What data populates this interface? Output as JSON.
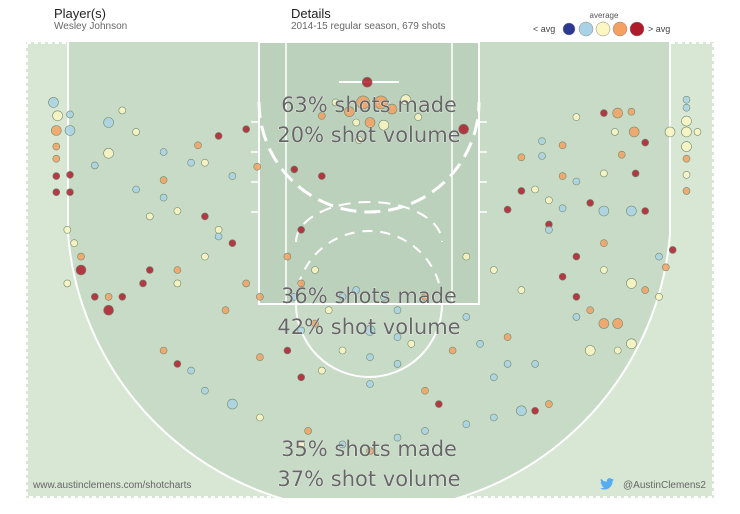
{
  "header": {
    "player_label": "Player(s)",
    "player_name": "Wesley Johnson",
    "details_label": "Details",
    "details_text": "2014-15 regular season, 679 shots"
  },
  "legend": {
    "title": "average",
    "low_label": "< avg",
    "high_label": "> avg",
    "colors": [
      "#2b3a8f",
      "#a9d2e6",
      "#fbf6c2",
      "#f4a060",
      "#b01b2c"
    ]
  },
  "footer": {
    "left_text": "www.austinclemens.com/shotcharts",
    "right_text": "@AustinClemens2",
    "twitter_color": "#55acee"
  },
  "colors": {
    "court_bg": "#d8e6d4",
    "paint_bg": "#bcd1bc",
    "arc_bg": "#c8dbc6",
    "line": "#ffffff"
  },
  "chart_data": {
    "type": "scatter",
    "title": "",
    "zones": [
      {
        "name": "restricted",
        "made_label": "63% shots made",
        "volume_label": "20% shot volume",
        "made_pct": 63,
        "volume_pct": 20
      },
      {
        "name": "mid-range",
        "made_label": "36% shots made",
        "volume_label": "42% shot volume",
        "made_pct": 36,
        "volume_pct": 42
      },
      {
        "name": "three-point",
        "made_label": "35% shots made",
        "volume_label": "37% shot volume",
        "made_pct": 35,
        "volume_pct": 37
      }
    ],
    "color_scale": [
      "< avg",
      "average",
      "> avg"
    ],
    "x_range": [
      -25,
      25
    ],
    "y_range": [
      -4,
      30
    ],
    "points": [
      {
        "x": -0.5,
        "y": 0.5,
        "size": 3,
        "level": 3
      },
      {
        "x": 0.8,
        "y": 0.5,
        "size": 3,
        "level": 3
      },
      {
        "x": -1.5,
        "y": 1.2,
        "size": 2,
        "level": 3
      },
      {
        "x": 1.6,
        "y": 1.0,
        "size": 2,
        "level": 3
      },
      {
        "x": -2.5,
        "y": 0.5,
        "size": 1,
        "level": 2
      },
      {
        "x": 2.6,
        "y": 0.3,
        "size": 2,
        "level": 2
      },
      {
        "x": 0.0,
        "y": 2.0,
        "size": 2,
        "level": 3
      },
      {
        "x": -1.0,
        "y": 2.0,
        "size": 1,
        "level": 2
      },
      {
        "x": 1.0,
        "y": 2.2,
        "size": 2,
        "level": 2
      },
      {
        "x": -3.5,
        "y": 1.5,
        "size": 1,
        "level": 3
      },
      {
        "x": 3.5,
        "y": 1.6,
        "size": 1,
        "level": 2
      },
      {
        "x": -0.2,
        "y": -1.0,
        "size": 2,
        "level": 4
      },
      {
        "x": 6.8,
        "y": 2.5,
        "size": 2,
        "level": 4
      },
      {
        "x": -5.5,
        "y": 5.5,
        "size": 1,
        "level": 4
      },
      {
        "x": -3.5,
        "y": 6.0,
        "size": 1,
        "level": 4
      },
      {
        "x": -0.8,
        "y": 3.3,
        "size": 1,
        "level": 2
      },
      {
        "x": -23.0,
        "y": 0.5,
        "size": 2,
        "level": 1
      },
      {
        "x": -22.7,
        "y": 1.5,
        "size": 2,
        "level": 2
      },
      {
        "x": -21.8,
        "y": 1.4,
        "size": 1,
        "level": 1
      },
      {
        "x": -22.8,
        "y": 2.6,
        "size": 2,
        "level": 3
      },
      {
        "x": -21.8,
        "y": 2.6,
        "size": 2,
        "level": 1
      },
      {
        "x": -22.8,
        "y": 3.8,
        "size": 1,
        "level": 3
      },
      {
        "x": -22.8,
        "y": 4.7,
        "size": 1,
        "level": 3
      },
      {
        "x": -22.8,
        "y": 6.0,
        "size": 1,
        "level": 4
      },
      {
        "x": -21.8,
        "y": 5.9,
        "size": 1,
        "level": 4
      },
      {
        "x": -22.8,
        "y": 7.2,
        "size": 1,
        "level": 4
      },
      {
        "x": -21.8,
        "y": 7.2,
        "size": 1,
        "level": 4
      },
      {
        "x": 23.0,
        "y": 0.9,
        "size": 1,
        "level": 1
      },
      {
        "x": 23.0,
        "y": 0.3,
        "size": 1,
        "level": 1
      },
      {
        "x": 23.0,
        "y": 1.9,
        "size": 2,
        "level": 2
      },
      {
        "x": 23.0,
        "y": 2.7,
        "size": 2,
        "level": 2
      },
      {
        "x": 21.8,
        "y": 2.7,
        "size": 2,
        "level": 2
      },
      {
        "x": 23.8,
        "y": 2.7,
        "size": 1,
        "level": 2
      },
      {
        "x": 23.0,
        "y": 3.8,
        "size": 2,
        "level": 2
      },
      {
        "x": 23.0,
        "y": 4.7,
        "size": 1,
        "level": 3
      },
      {
        "x": 23.0,
        "y": 5.9,
        "size": 1,
        "level": 2
      },
      {
        "x": 23.0,
        "y": 7.1,
        "size": 1,
        "level": 3
      },
      {
        "x": -19.0,
        "y": 2.0,
        "size": 2,
        "level": 1
      },
      {
        "x": -17.0,
        "y": 2.7,
        "size": 1,
        "level": 2
      },
      {
        "x": -18.0,
        "y": 1.1,
        "size": 1,
        "level": 2
      },
      {
        "x": -15.0,
        "y": 4.2,
        "size": 1,
        "level": 1
      },
      {
        "x": -12.5,
        "y": 3.7,
        "size": 1,
        "level": 3
      },
      {
        "x": -11.0,
        "y": 3.0,
        "size": 1,
        "level": 4
      },
      {
        "x": -9.0,
        "y": 2.5,
        "size": 1,
        "level": 4
      },
      {
        "x": -13.0,
        "y": 5.0,
        "size": 1,
        "level": 1
      },
      {
        "x": -12.0,
        "y": 5.0,
        "size": 1,
        "level": 2
      },
      {
        "x": -10.0,
        "y": 6.0,
        "size": 1,
        "level": 1
      },
      {
        "x": -8.2,
        "y": 5.3,
        "size": 1,
        "level": 3
      },
      {
        "x": -20.0,
        "y": 5.2,
        "size": 1,
        "level": 1
      },
      {
        "x": -19.0,
        "y": 4.3,
        "size": 2,
        "level": 2
      },
      {
        "x": -15.0,
        "y": 6.3,
        "size": 1,
        "level": 3
      },
      {
        "x": 18.0,
        "y": 1.3,
        "size": 2,
        "level": 3
      },
      {
        "x": 19.0,
        "y": 1.2,
        "size": 1,
        "level": 3
      },
      {
        "x": 17.0,
        "y": 1.3,
        "size": 1,
        "level": 4
      },
      {
        "x": 15.0,
        "y": 1.6,
        "size": 1,
        "level": 2
      },
      {
        "x": 17.8,
        "y": 2.7,
        "size": 1,
        "level": 2
      },
      {
        "x": 19.2,
        "y": 2.7,
        "size": 2,
        "level": 3
      },
      {
        "x": 20.0,
        "y": 3.5,
        "size": 1,
        "level": 4
      },
      {
        "x": 12.5,
        "y": 3.4,
        "size": 1,
        "level": 1
      },
      {
        "x": 14.0,
        "y": 3.7,
        "size": 1,
        "level": 3
      },
      {
        "x": 18.3,
        "y": 4.4,
        "size": 1,
        "level": 3
      },
      {
        "x": 12.5,
        "y": 4.5,
        "size": 1,
        "level": 1
      },
      {
        "x": 11.0,
        "y": 4.6,
        "size": 1,
        "level": 3
      },
      {
        "x": 15.0,
        "y": 6.4,
        "size": 1,
        "level": 1
      },
      {
        "x": 17.0,
        "y": 5.8,
        "size": 1,
        "level": 2
      },
      {
        "x": 19.3,
        "y": 5.8,
        "size": 1,
        "level": 4
      },
      {
        "x": 14.0,
        "y": 6.0,
        "size": 1,
        "level": 3
      },
      {
        "x": 12.0,
        "y": 7.0,
        "size": 1,
        "level": 2
      },
      {
        "x": 13.0,
        "y": 7.8,
        "size": 1,
        "level": 2
      },
      {
        "x": 14.0,
        "y": 8.4,
        "size": 1,
        "level": 1
      },
      {
        "x": 16.0,
        "y": 8.0,
        "size": 1,
        "level": 4
      },
      {
        "x": 17.0,
        "y": 8.6,
        "size": 2,
        "level": 1
      },
      {
        "x": 19.0,
        "y": 8.6,
        "size": 2,
        "level": 1
      },
      {
        "x": 20.0,
        "y": 8.6,
        "size": 1,
        "level": 4
      },
      {
        "x": 11.0,
        "y": 7.1,
        "size": 1,
        "level": 4
      },
      {
        "x": 10.0,
        "y": 8.5,
        "size": 1,
        "level": 4
      },
      {
        "x": 13.0,
        "y": 9.6,
        "size": 1,
        "level": 4
      },
      {
        "x": -17.0,
        "y": 7.0,
        "size": 1,
        "level": 1
      },
      {
        "x": -15.0,
        "y": 7.6,
        "size": 1,
        "level": 1
      },
      {
        "x": -14.0,
        "y": 8.6,
        "size": 1,
        "level": 2
      },
      {
        "x": -12.0,
        "y": 9.0,
        "size": 1,
        "level": 4
      },
      {
        "x": -16.0,
        "y": 9.0,
        "size": 1,
        "level": 2
      },
      {
        "x": -11.0,
        "y": 10.0,
        "size": 1,
        "level": 2
      },
      {
        "x": -5.0,
        "y": 10.0,
        "size": 1,
        "level": 4
      },
      {
        "x": -22.0,
        "y": 10.0,
        "size": 1,
        "level": 2
      },
      {
        "x": -21.5,
        "y": 11.0,
        "size": 1,
        "level": 2
      },
      {
        "x": -21.0,
        "y": 12.0,
        "size": 1,
        "level": 3
      },
      {
        "x": -21.0,
        "y": 13.0,
        "size": 2,
        "level": 4
      },
      {
        "x": -19.0,
        "y": 15.0,
        "size": 1,
        "level": 3
      },
      {
        "x": -19.0,
        "y": 16.0,
        "size": 2,
        "level": 4
      },
      {
        "x": -20.0,
        "y": 15.0,
        "size": 1,
        "level": 4
      },
      {
        "x": -18.0,
        "y": 15.0,
        "size": 1,
        "level": 4
      },
      {
        "x": -22.0,
        "y": 14.0,
        "size": 1,
        "level": 2
      },
      {
        "x": -16.0,
        "y": 13.0,
        "size": 1,
        "level": 4
      },
      {
        "x": -16.5,
        "y": 14.0,
        "size": 1,
        "level": 4
      },
      {
        "x": -14.0,
        "y": 13.0,
        "size": 1,
        "level": 3
      },
      {
        "x": -14.0,
        "y": 14.0,
        "size": 1,
        "level": 2
      },
      {
        "x": -12.0,
        "y": 12.0,
        "size": 1,
        "level": 2
      },
      {
        "x": -11.0,
        "y": 10.5,
        "size": 1,
        "level": 1
      },
      {
        "x": -10.0,
        "y": 11.0,
        "size": 1,
        "level": 4
      },
      {
        "x": -9.0,
        "y": 14.0,
        "size": 1,
        "level": 3
      },
      {
        "x": -6.0,
        "y": 12.0,
        "size": 1,
        "level": 3
      },
      {
        "x": -5.0,
        "y": 14.0,
        "size": 1,
        "level": 3
      },
      {
        "x": -4.0,
        "y": 13.0,
        "size": 1,
        "level": 2
      },
      {
        "x": -4.0,
        "y": 17.0,
        "size": 1,
        "level": 3
      },
      {
        "x": -2.0,
        "y": 15.0,
        "size": 1,
        "level": 1
      },
      {
        "x": -3.0,
        "y": 16.0,
        "size": 1,
        "level": 2
      },
      {
        "x": -1.0,
        "y": 14.5,
        "size": 1,
        "level": 1
      },
      {
        "x": -5.0,
        "y": 17.5,
        "size": 1,
        "level": 1
      },
      {
        "x": 0.0,
        "y": 17.5,
        "size": 2,
        "level": 1
      },
      {
        "x": 1.0,
        "y": 15.0,
        "size": 1,
        "level": 1
      },
      {
        "x": 2.0,
        "y": 16.0,
        "size": 1,
        "level": 1
      },
      {
        "x": 3.0,
        "y": 18.5,
        "size": 1,
        "level": 2
      },
      {
        "x": 4.0,
        "y": 15.0,
        "size": 1,
        "level": 3
      },
      {
        "x": -5.5,
        "y": 15.0,
        "size": 1,
        "level": 1
      },
      {
        "x": -8.0,
        "y": 15.0,
        "size": 1,
        "level": 3
      },
      {
        "x": -10.5,
        "y": 16.0,
        "size": 1,
        "level": 3
      },
      {
        "x": -2.0,
        "y": 19.0,
        "size": 1,
        "level": 2
      },
      {
        "x": 7.0,
        "y": 12.0,
        "size": 1,
        "level": 2
      },
      {
        "x": 9.0,
        "y": 13.0,
        "size": 1,
        "level": 2
      },
      {
        "x": 11.0,
        "y": 14.5,
        "size": 1,
        "level": 2
      },
      {
        "x": 13.0,
        "y": 10.0,
        "size": 1,
        "level": 1
      },
      {
        "x": 15.0,
        "y": 12.0,
        "size": 1,
        "level": 4
      },
      {
        "x": 17.0,
        "y": 13.0,
        "size": 1,
        "level": 2
      },
      {
        "x": 19.0,
        "y": 14.0,
        "size": 2,
        "level": 2
      },
      {
        "x": 20.0,
        "y": 14.5,
        "size": 1,
        "level": 3
      },
      {
        "x": 21.0,
        "y": 15.0,
        "size": 1,
        "level": 2
      },
      {
        "x": 21.0,
        "y": 12.0,
        "size": 1,
        "level": 1
      },
      {
        "x": 21.5,
        "y": 12.8,
        "size": 1,
        "level": 3
      },
      {
        "x": 22.0,
        "y": 11.5,
        "size": 1,
        "level": 4
      },
      {
        "x": 17.0,
        "y": 11.0,
        "size": 1,
        "level": 3
      },
      {
        "x": 14.0,
        "y": 13.5,
        "size": 1,
        "level": 4
      },
      {
        "x": 15.0,
        "y": 15.0,
        "size": 1,
        "level": 4
      },
      {
        "x": 16.0,
        "y": 16.0,
        "size": 1,
        "level": 3
      },
      {
        "x": 15.0,
        "y": 16.5,
        "size": 1,
        "level": 1
      },
      {
        "x": 17.0,
        "y": 17.0,
        "size": 2,
        "level": 3
      },
      {
        "x": 18.0,
        "y": 17.0,
        "size": 2,
        "level": 3
      },
      {
        "x": 19.0,
        "y": 18.5,
        "size": 2,
        "level": 2
      },
      {
        "x": 18.0,
        "y": 19.0,
        "size": 1,
        "level": 2
      },
      {
        "x": 16.0,
        "y": 19.0,
        "size": 2,
        "level": 2
      },
      {
        "x": 10.0,
        "y": 18.0,
        "size": 1,
        "level": 3
      },
      {
        "x": 12.0,
        "y": 20.0,
        "size": 1,
        "level": 1
      },
      {
        "x": 13.0,
        "y": 23.0,
        "size": 1,
        "level": 3
      },
      {
        "x": -12.0,
        "y": 22.0,
        "size": 1,
        "level": 1
      },
      {
        "x": -14.0,
        "y": 20.0,
        "size": 1,
        "level": 4
      },
      {
        "x": -15.0,
        "y": 19.0,
        "size": 1,
        "level": 3
      },
      {
        "x": -13.0,
        "y": 20.5,
        "size": 1,
        "level": 1
      },
      {
        "x": -10.0,
        "y": 23.0,
        "size": 2,
        "level": 1
      },
      {
        "x": -8.0,
        "y": 24.0,
        "size": 1,
        "level": 2
      },
      {
        "x": -4.5,
        "y": 25.0,
        "size": 1,
        "level": 3
      },
      {
        "x": -5.0,
        "y": 26.0,
        "size": 1,
        "level": 2
      },
      {
        "x": -2.0,
        "y": 26.0,
        "size": 1,
        "level": 1
      },
      {
        "x": 0.0,
        "y": 26.5,
        "size": 1,
        "level": 3
      },
      {
        "x": 2.0,
        "y": 25.5,
        "size": 1,
        "level": 1
      },
      {
        "x": 4.0,
        "y": 25.0,
        "size": 1,
        "level": 1
      },
      {
        "x": 7.0,
        "y": 24.5,
        "size": 1,
        "level": 1
      },
      {
        "x": 9.0,
        "y": 24.0,
        "size": 1,
        "level": 1
      },
      {
        "x": 11.0,
        "y": 23.5,
        "size": 2,
        "level": 1
      },
      {
        "x": 12.0,
        "y": 23.5,
        "size": 1,
        "level": 4
      },
      {
        "x": 9.0,
        "y": 21.0,
        "size": 1,
        "level": 1
      },
      {
        "x": 10.0,
        "y": 20.0,
        "size": 1,
        "level": 1
      },
      {
        "x": 4.0,
        "y": 22.0,
        "size": 1,
        "level": 3
      },
      {
        "x": 5.0,
        "y": 23.0,
        "size": 1,
        "level": 4
      },
      {
        "x": 0.0,
        "y": 21.5,
        "size": 1,
        "level": 1
      },
      {
        "x": -3.5,
        "y": 20.5,
        "size": 1,
        "level": 2
      },
      {
        "x": -5.0,
        "y": 21.0,
        "size": 1,
        "level": 4
      },
      {
        "x": -8.0,
        "y": 19.5,
        "size": 1,
        "level": 3
      },
      {
        "x": -6.0,
        "y": 19.0,
        "size": 1,
        "level": 4
      },
      {
        "x": 0.0,
        "y": 19.5,
        "size": 1,
        "level": 1
      },
      {
        "x": 2.0,
        "y": 20.0,
        "size": 1,
        "level": 1
      },
      {
        "x": 6.0,
        "y": 19.0,
        "size": 1,
        "level": 3
      },
      {
        "x": 8.0,
        "y": 18.5,
        "size": 1,
        "level": 1
      },
      {
        "x": 2.0,
        "y": 18.0,
        "size": 1,
        "level": 1
      },
      {
        "x": 7.0,
        "y": 16.5,
        "size": 1,
        "level": 1
      }
    ]
  }
}
